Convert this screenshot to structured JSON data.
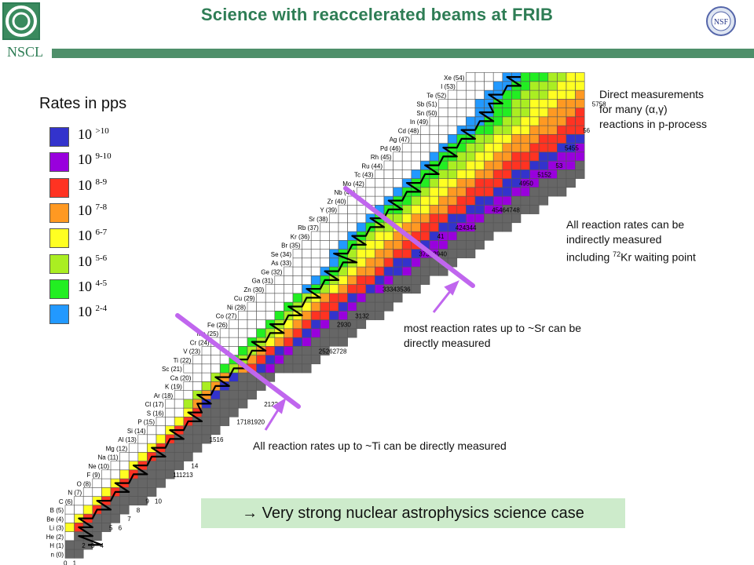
{
  "header": {
    "title": "Science with reaccelerated beams at FRIB",
    "logo_left_text": "NSCL",
    "logo_right_text": "NSF"
  },
  "legend": {
    "title": "Rates in pps",
    "items": [
      {
        "base": "10",
        "exp": ">10",
        "color": "#3333cc"
      },
      {
        "base": "10",
        "exp": "9-10",
        "color": "#9900dd"
      },
      {
        "base": "10",
        "exp": "8-9",
        "color": "#ff3322"
      },
      {
        "base": "10",
        "exp": "7-8",
        "color": "#ff9922"
      },
      {
        "base": "10",
        "exp": "6-7",
        "color": "#ffff22"
      },
      {
        "base": "10",
        "exp": "5-6",
        "color": "#aaee22"
      },
      {
        "base": "10",
        "exp": "4-5",
        "color": "#22ee22"
      },
      {
        "base": "10",
        "exp": "2-4",
        "color": "#2299ff"
      }
    ]
  },
  "colors": {
    "stable": "#666666",
    "empty": "#ffffff",
    "path": "#000000",
    "divider": "#c066ee",
    "arrow": "#c066ee",
    "accent": "#2e7d55"
  },
  "chart_data": {
    "type": "chart-of-nuclides",
    "element_labels": [
      "n (0)",
      "H (1)",
      "He (2)",
      "Li (3)",
      "Be (4)",
      "B (5)",
      "C (6)",
      "N (7)",
      "O (8)",
      "F (9)",
      "Ne (10)",
      "Na (11)",
      "Mg (12)",
      "Al (13)",
      "Si (14)",
      "P (15)",
      "S (16)",
      "Cl (17)",
      "Ar (18)",
      "K (19)",
      "Ca (20)",
      "Sc (21)",
      "Ti (22)",
      "V (23)",
      "Cr (24)",
      "Mn (25)",
      "Fe (26)",
      "Co (27)",
      "Ni (28)",
      "Cu (29)",
      "Zn (30)",
      "Ga (31)",
      "Ge (32)",
      "As (33)",
      "Se (34)",
      "Br (35)",
      "Kr (36)",
      "Rb (37)",
      "Sr (38)",
      "Y (39)",
      "Zr (40)",
      "Nb (41)",
      "Mo (42)",
      "Tc (43)",
      "Ru (44)",
      "Rh (45)",
      "Pd (46)",
      "Ag (47)",
      "Cd (48)",
      "In (49)",
      "Sn (50)",
      "Sb (51)",
      "Te (52)",
      "I (53)",
      "Xe (54)"
    ],
    "neutron_labels": [
      "0",
      "1",
      "2",
      "3",
      "4",
      "5",
      "6",
      "7",
      "8",
      "9",
      "10",
      "11",
      "12",
      "13",
      "14",
      "15",
      "16",
      "17",
      "18",
      "19",
      "20",
      "21",
      "22",
      "25",
      "26",
      "27",
      "28",
      "29",
      "30",
      "31",
      "32",
      "33",
      "34",
      "35",
      "36",
      "37",
      "38",
      "39",
      "40",
      "41",
      "42",
      "43",
      "44",
      "45",
      "46",
      "47",
      "48",
      "49",
      "50",
      "51",
      "52",
      "53",
      "54",
      "55",
      "56",
      "57",
      "58"
    ],
    "visible_neutron_labels": [
      {
        "text": "0",
        "z": 0,
        "n": 0
      },
      {
        "text": "1",
        "z": 0,
        "n": 1
      },
      {
        "text": "2",
        "z": 2,
        "n": 2
      },
      {
        "text": "3",
        "z": 2,
        "n": 3
      },
      {
        "text": "4",
        "z": 2,
        "n": 4
      },
      {
        "text": "5",
        "z": 4,
        "n": 5
      },
      {
        "text": "6",
        "z": 4,
        "n": 6
      },
      {
        "text": "7",
        "z": 5,
        "n": 7
      },
      {
        "text": "8",
        "z": 6,
        "n": 8
      },
      {
        "text": "9",
        "z": 7,
        "n": 9
      },
      {
        "text": "10",
        "z": 7,
        "n": 10
      },
      {
        "text": "111213",
        "z": 10,
        "n": 12
      },
      {
        "text": "14",
        "z": 11,
        "n": 14
      },
      {
        "text": "1516",
        "z": 14,
        "n": 16
      },
      {
        "text": "17181920",
        "z": 16,
        "n": 19
      },
      {
        "text": "2122",
        "z": 18,
        "n": 22
      },
      {
        "text": "25262728",
        "z": 24,
        "n": 28
      },
      {
        "text": "2930",
        "z": 27,
        "n": 30
      },
      {
        "text": "3132",
        "z": 28,
        "n": 32
      },
      {
        "text": "33343536",
        "z": 31,
        "n": 35
      },
      {
        "text": "37383940",
        "z": 35,
        "n": 39
      },
      {
        "text": "41",
        "z": 37,
        "n": 41
      },
      {
        "text": "424344",
        "z": 38,
        "n": 43
      },
      {
        "text": "45464748",
        "z": 40,
        "n": 47
      },
      {
        "text": "4950",
        "z": 43,
        "n": 50
      },
      {
        "text": "5152",
        "z": 44,
        "n": 52
      },
      {
        "text": "53",
        "z": 45,
        "n": 54
      },
      {
        "text": "5455",
        "z": 47,
        "n": 55
      },
      {
        "text": "56",
        "z": 49,
        "n": 57
      },
      {
        "text": "5758",
        "z": 52,
        "n": 58
      }
    ],
    "rate_scale": [
      ">10",
      "9-10",
      "8-9",
      "7-8",
      "6-7",
      "5-6",
      "4-5",
      "2-4"
    ]
  },
  "annotations": {
    "direct_alpha_gamma": [
      "Direct measurements",
      "for many (α,γ)",
      "reactions in p-process"
    ],
    "indirect_all": [
      "All reaction rates can be",
      "indirectly measured",
      "including ",
      "72",
      "Kr waiting point"
    ],
    "sr_direct": [
      "most reaction rates up to ~Sr can be",
      "directly measured"
    ],
    "ti_direct": "All reaction rates up to ~Ti can be directly measured",
    "conclusion": "→ Very strong nuclear astrophysics science case"
  }
}
